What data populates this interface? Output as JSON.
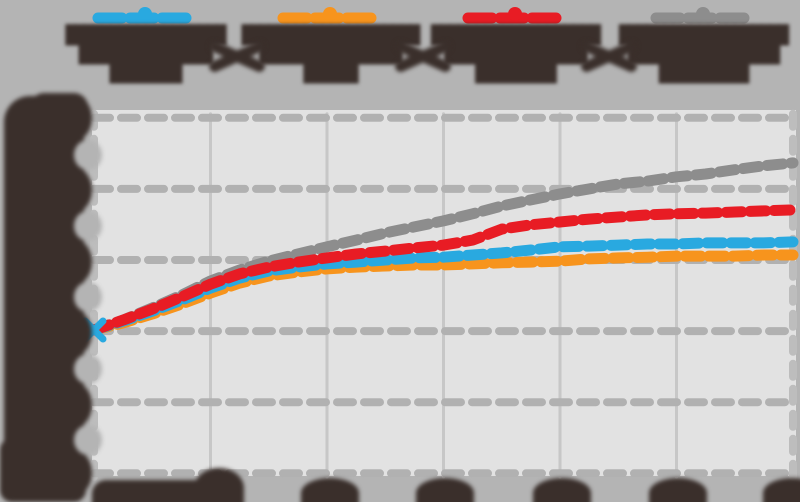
{
  "page": {
    "background": "#b4b4b4",
    "plot_background": "#e2e2e2",
    "gridline_color": "#b1b1b1",
    "minor_gridline_color": "#c7c7c7",
    "blob_text_color": "#3a2f2b",
    "text_legible": false
  },
  "legend": {
    "position": "top",
    "text_legible": false,
    "items": [
      {
        "name": "blue-series",
        "color": "#29a9e0",
        "blob_lines": [
          "██████████████████",
          "███████████████",
          "████████"
        ]
      },
      {
        "name": "orange-series",
        "color": "#f7941d",
        "blob_lines": [
          "████████████████████",
          "████████████████",
          "██████"
        ]
      },
      {
        "name": "red-series",
        "color": "#e81c24",
        "blob_lines": [
          "███████████████████",
          "████████████████",
          "█████████"
        ]
      },
      {
        "name": "gray-series",
        "color": "#8d8d8d",
        "blob_lines": [
          "███████████████████",
          "█████████████████",
          "██████████"
        ]
      }
    ]
  },
  "chart_data": {
    "type": "line",
    "title": "",
    "xlabel": "",
    "ylabel": "",
    "axis_text_legible": false,
    "grid": true,
    "legend_position": "top",
    "xlim": [
      0,
      6
    ],
    "ylim": [
      0,
      1
    ],
    "x_gridlines": [
      0,
      1,
      2,
      3,
      4,
      5,
      6
    ],
    "y_gridlines": [
      0,
      0.2,
      0.4,
      0.6,
      0.8,
      1.0
    ],
    "x": [
      0,
      0.25,
      0.5,
      0.75,
      1,
      1.25,
      1.5,
      1.75,
      2,
      2.25,
      2.5,
      2.75,
      3,
      3.25,
      3.5,
      3.75,
      4,
      4.25,
      4.5,
      4.75,
      5,
      5.25,
      5.5,
      5.75,
      6
    ],
    "series": [
      {
        "name": "blue",
        "color": "#29a9e0",
        "dashed": true,
        "values": [
          0.403,
          0.428,
          0.456,
          0.487,
          0.521,
          0.549,
          0.569,
          0.58,
          0.589,
          0.594,
          0.6,
          0.606,
          0.608,
          0.614,
          0.62,
          0.628,
          0.637,
          0.639,
          0.642,
          0.645,
          0.645,
          0.648,
          0.648,
          0.648,
          0.651
        ]
      },
      {
        "name": "orange",
        "color": "#f7941d",
        "dashed": true,
        "values": [
          0.403,
          0.423,
          0.448,
          0.476,
          0.507,
          0.535,
          0.555,
          0.566,
          0.575,
          0.58,
          0.583,
          0.586,
          0.586,
          0.589,
          0.592,
          0.594,
          0.597,
          0.603,
          0.606,
          0.608,
          0.611,
          0.611,
          0.611,
          0.614,
          0.614
        ]
      },
      {
        "name": "red",
        "color": "#e81c24",
        "dashed": true,
        "values": [
          0.403,
          0.431,
          0.462,
          0.496,
          0.532,
          0.561,
          0.58,
          0.594,
          0.606,
          0.617,
          0.625,
          0.634,
          0.642,
          0.656,
          0.687,
          0.699,
          0.707,
          0.715,
          0.721,
          0.727,
          0.73,
          0.732,
          0.735,
          0.738,
          0.741
        ]
      },
      {
        "name": "gray",
        "color": "#8d8d8d",
        "dashed": true,
        "values": [
          0.403,
          0.431,
          0.465,
          0.501,
          0.541,
          0.572,
          0.597,
          0.617,
          0.637,
          0.656,
          0.676,
          0.693,
          0.71,
          0.73,
          0.752,
          0.769,
          0.786,
          0.8,
          0.814,
          0.822,
          0.834,
          0.842,
          0.854,
          0.865,
          0.873
        ]
      }
    ],
    "start_marker": {
      "series": "blue",
      "x": 0,
      "shape": "x-cross"
    }
  }
}
